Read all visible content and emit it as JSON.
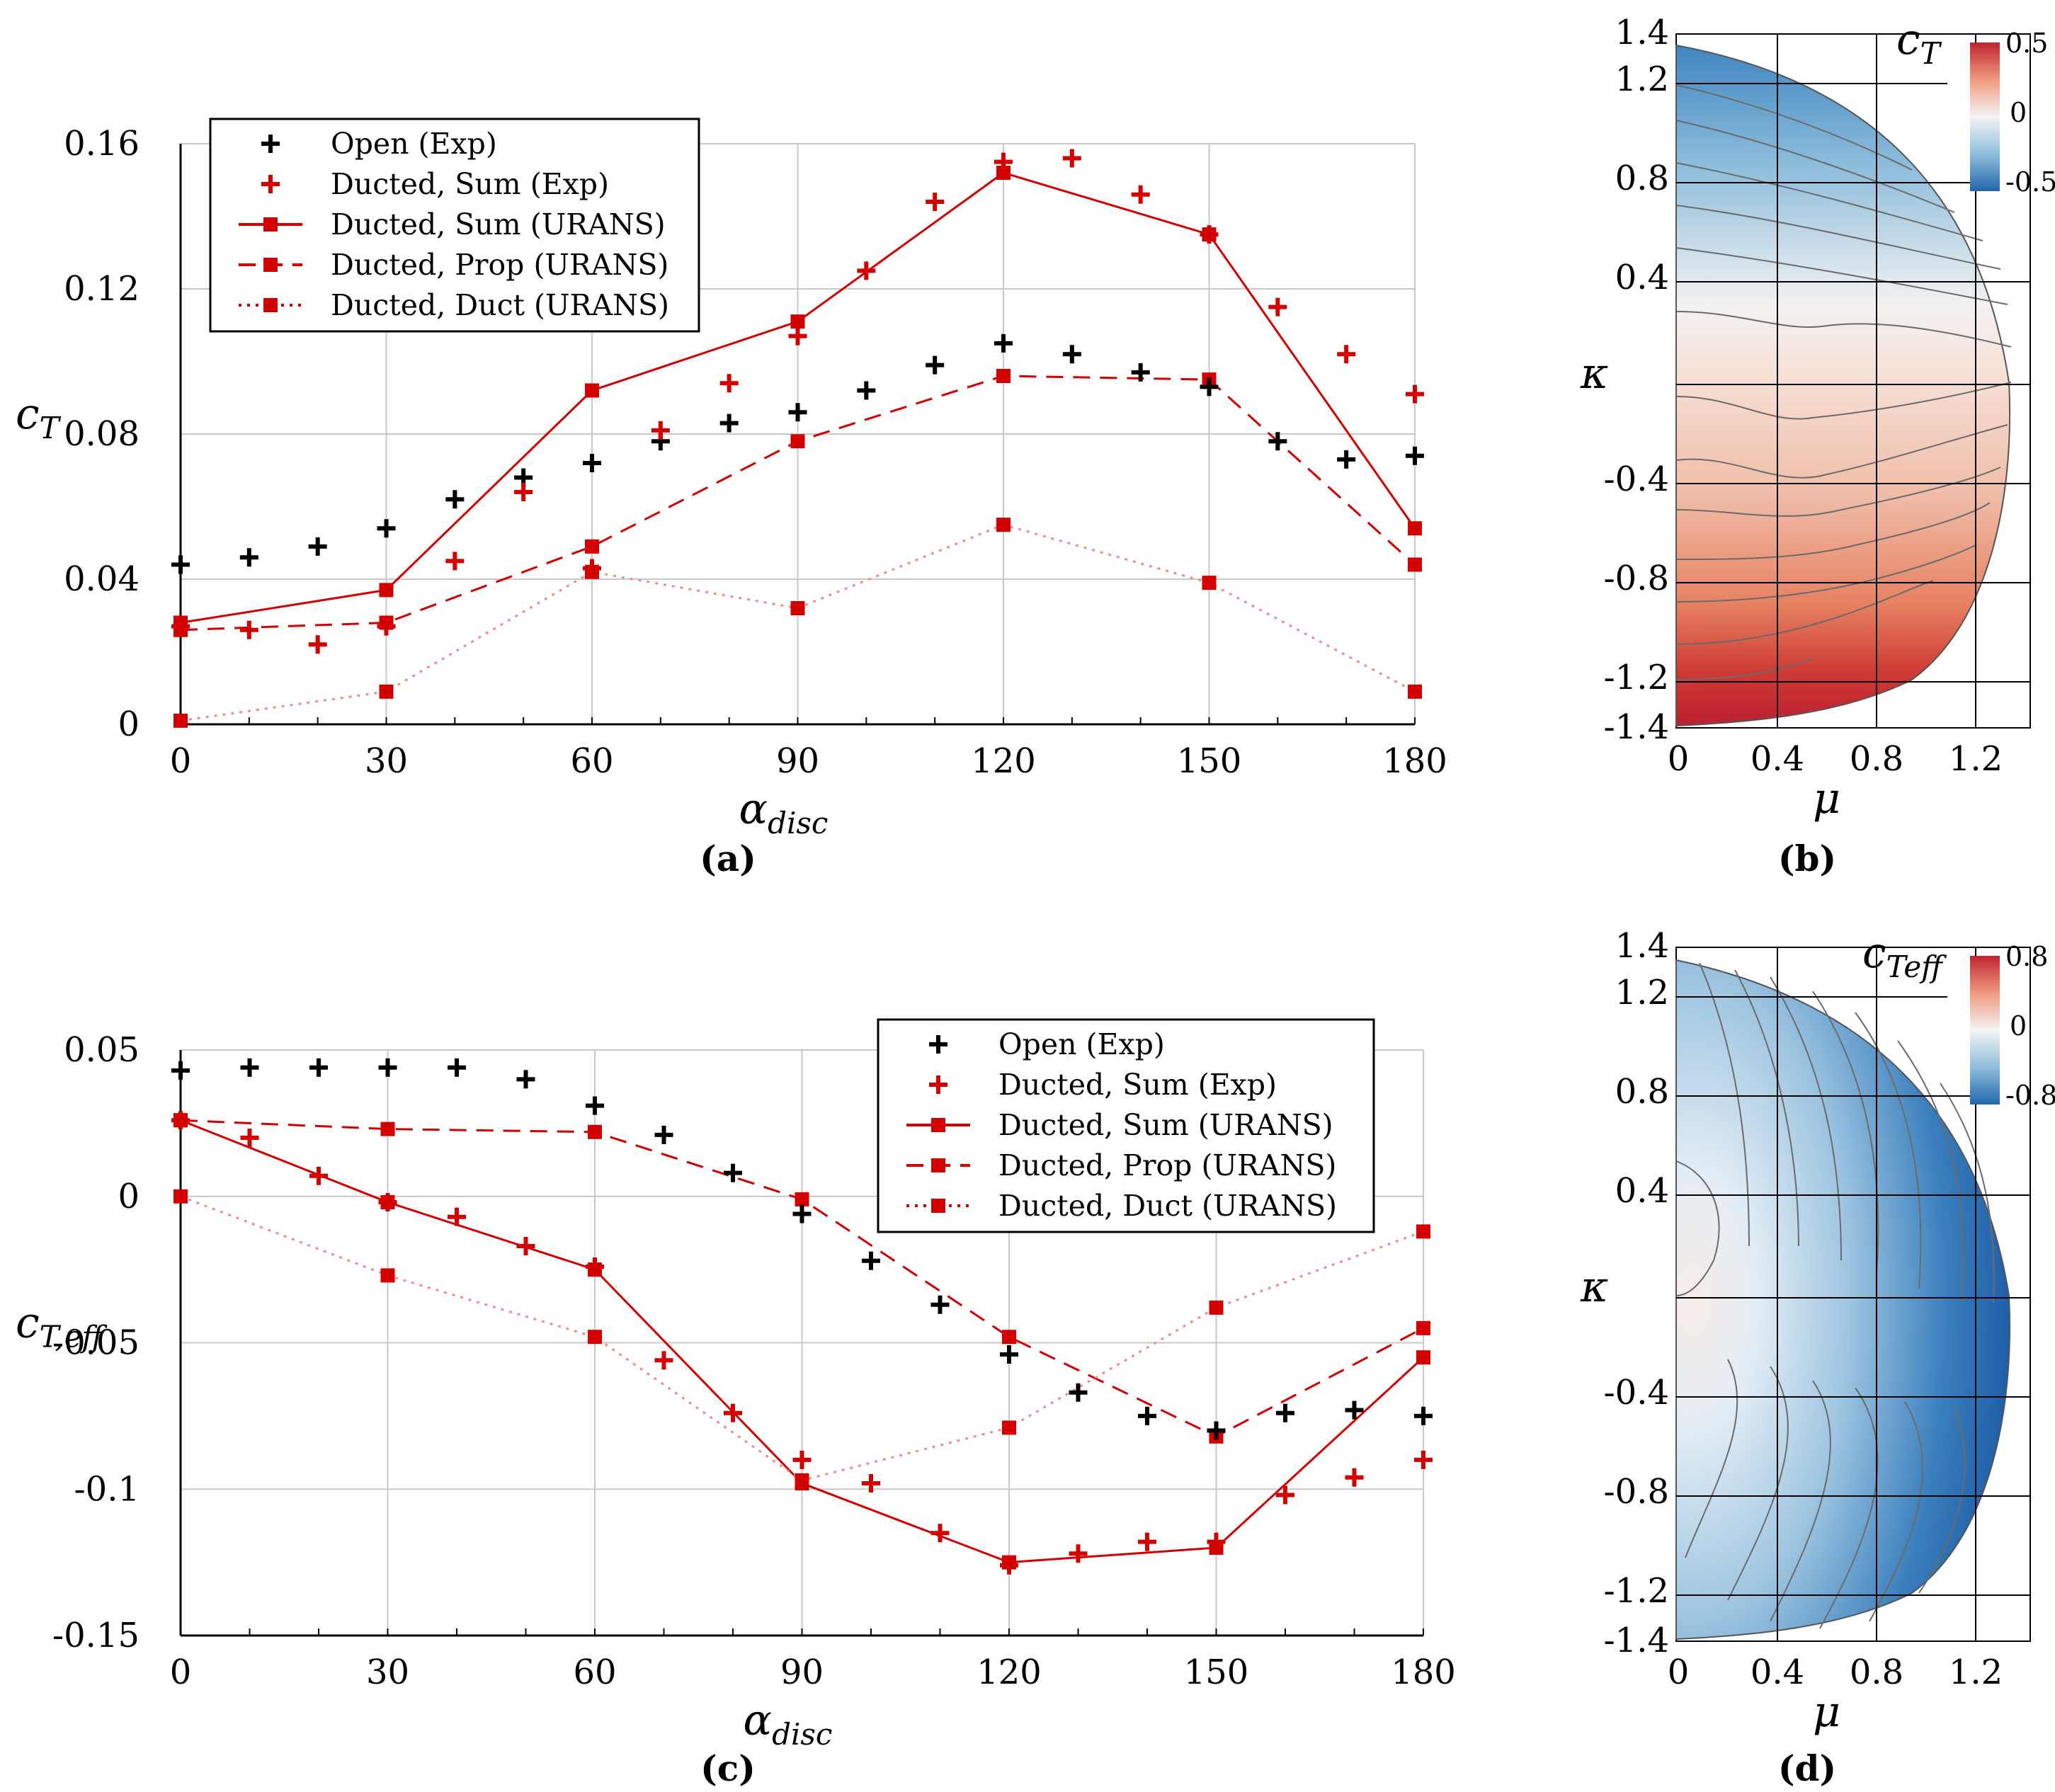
{
  "chart_data": [
    {
      "panel": "(a)",
      "type": "scatter",
      "xlabel": "α",
      "xlabel_sub": "disc",
      "ylabel": "c",
      "ylabel_sub": "T",
      "xlim": [
        0,
        180
      ],
      "ylim": [
        0,
        0.16
      ],
      "xticks": [
        "0",
        "30",
        "60",
        "90",
        "120",
        "150",
        "180"
      ],
      "yticks": [
        "0",
        "0.04",
        "0.08",
        "0.12",
        "0.16"
      ],
      "grid": true,
      "legend_position": "top-left",
      "series": [
        {
          "name": "Open (Exp)",
          "style": "plus-black",
          "x": [
            0,
            10,
            20,
            30,
            40,
            50,
            60,
            70,
            80,
            90,
            100,
            110,
            120,
            130,
            140,
            150,
            160,
            170,
            180
          ],
          "y": [
            0.044,
            0.046,
            0.049,
            0.054,
            0.062,
            0.068,
            0.072,
            0.078,
            0.083,
            0.086,
            0.092,
            0.099,
            0.105,
            0.102,
            0.097,
            0.093,
            0.078,
            0.073,
            0.074
          ]
        },
        {
          "name": "Ducted, Sum (Exp)",
          "style": "plus-red",
          "x": [
            0,
            10,
            20,
            30,
            40,
            50,
            60,
            70,
            80,
            90,
            100,
            110,
            120,
            130,
            140,
            150,
            160,
            170,
            180
          ],
          "y": [
            0.027,
            0.026,
            0.022,
            0.027,
            0.045,
            0.064,
            0.043,
            0.081,
            0.094,
            0.107,
            0.125,
            0.144,
            0.155,
            0.156,
            0.146,
            0.135,
            0.115,
            0.102,
            0.091
          ]
        },
        {
          "name": "Ducted, Sum (URANS)",
          "style": "solid",
          "x": [
            0,
            30,
            60,
            90,
            120,
            150,
            180
          ],
          "y": [
            0.028,
            0.037,
            0.092,
            0.111,
            0.152,
            0.135,
            0.054
          ]
        },
        {
          "name": "Ducted, Prop (URANS)",
          "style": "dashed",
          "x": [
            0,
            30,
            60,
            90,
            120,
            150,
            180
          ],
          "y": [
            0.026,
            0.028,
            0.049,
            0.078,
            0.096,
            0.095,
            0.044
          ]
        },
        {
          "name": "Ducted, Duct (URANS)",
          "style": "dotted",
          "x": [
            0,
            30,
            60,
            90,
            120,
            150,
            180
          ],
          "y": [
            0.001,
            0.009,
            0.042,
            0.032,
            0.055,
            0.039,
            0.009
          ]
        }
      ]
    },
    {
      "panel": "(b)",
      "type": "heatmap",
      "xlabel": "μ",
      "ylabel": "κ",
      "xticks": [
        "0",
        "0.4",
        "0.8",
        "1.2"
      ],
      "yticks": [
        "1.4",
        "1.2",
        "0.8",
        "0.4",
        "-0.4",
        "-0.8",
        "-1.2",
        "-1.4"
      ],
      "colorbar_label": "c",
      "colorbar_label_sub": "T",
      "colorbar_ticks": [
        "0.5",
        "0",
        "-0.5"
      ]
    },
    {
      "panel": "(c)",
      "type": "scatter",
      "xlabel": "α",
      "xlabel_sub": "disc",
      "ylabel": "c",
      "ylabel_sub": "T,eff",
      "xlim": [
        0,
        180
      ],
      "ylim": [
        -0.15,
        0.05
      ],
      "xticks": [
        "0",
        "30",
        "60",
        "90",
        "120",
        "150",
        "180"
      ],
      "yticks": [
        "0.05",
        "0",
        "-0.05",
        "-0.1",
        "-0.15"
      ],
      "grid": true,
      "legend_position": "top-right",
      "series": [
        {
          "name": "Open (Exp)",
          "style": "plus-black",
          "x": [
            0,
            10,
            20,
            30,
            40,
            50,
            60,
            70,
            80,
            90,
            100,
            110,
            120,
            130,
            140,
            150,
            160,
            170,
            180
          ],
          "y": [
            0.043,
            0.044,
            0.044,
            0.044,
            0.044,
            0.04,
            0.031,
            0.021,
            0.008,
            -0.006,
            -0.022,
            -0.037,
            -0.054,
            -0.067,
            -0.075,
            -0.08,
            -0.074,
            -0.073,
            -0.075
          ]
        },
        {
          "name": "Ducted, Sum (Exp)",
          "style": "plus-red",
          "x": [
            0,
            10,
            20,
            30,
            40,
            50,
            60,
            70,
            80,
            90,
            100,
            110,
            120,
            130,
            140,
            150,
            160,
            170,
            180
          ],
          "y": [
            0.026,
            0.02,
            0.007,
            -0.002,
            -0.007,
            -0.017,
            -0.024,
            -0.056,
            -0.074,
            -0.09,
            -0.098,
            -0.115,
            -0.126,
            -0.122,
            -0.118,
            -0.118,
            -0.102,
            -0.096,
            -0.09
          ]
        },
        {
          "name": "Ducted, Sum (URANS)",
          "style": "solid",
          "x": [
            0,
            30,
            60,
            90,
            120,
            150,
            180
          ],
          "y": [
            0.026,
            -0.002,
            -0.025,
            -0.098,
            -0.125,
            -0.12,
            -0.055
          ]
        },
        {
          "name": "Ducted, Prop (URANS)",
          "style": "dashed",
          "x": [
            0,
            30,
            60,
            90,
            120,
            150,
            180
          ],
          "y": [
            0.026,
            0.023,
            0.022,
            -0.001,
            -0.048,
            -0.082,
            -0.045
          ]
        },
        {
          "name": "Ducted, Duct (URANS)",
          "style": "dotted",
          "x": [
            0,
            30,
            60,
            90,
            120,
            150,
            180
          ],
          "y": [
            0.0,
            -0.027,
            -0.048,
            -0.097,
            -0.079,
            -0.038,
            -0.012
          ]
        }
      ]
    },
    {
      "panel": "(d)",
      "type": "heatmap",
      "xlabel": "μ",
      "ylabel": "κ",
      "xticks": [
        "0",
        "0.4",
        "0.8",
        "1.2"
      ],
      "yticks": [
        "1.4",
        "1.2",
        "0.8",
        "0.4",
        "-0.4",
        "-0.8",
        "-1.2",
        "-1.4"
      ],
      "colorbar_label": "c",
      "colorbar_label_sub": "Teff",
      "colorbar_ticks": [
        "0.8",
        "0",
        "-0.8"
      ]
    }
  ],
  "colors": {
    "red": "#d40000",
    "black": "#000000",
    "grid": "#c8c8c8"
  }
}
